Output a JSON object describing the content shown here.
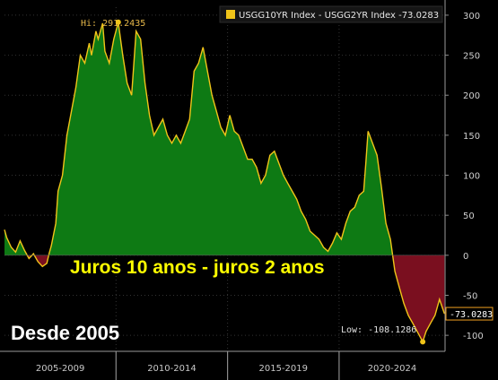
{
  "chart_data": {
    "type": "area",
    "legend": "USGG10YR Index - USGG2YR Index -73.0283",
    "x_period_labels": [
      "2005-2009",
      "2010-2014",
      "2015-2019",
      "2020-2024"
    ],
    "x_range": [
      2005.0,
      2024.75
    ],
    "ylim": [
      -120,
      310
    ],
    "y_ticks": [
      -100,
      -50,
      0,
      50,
      100,
      150,
      200,
      250,
      300
    ],
    "y_tick_labels": [
      "-100",
      "-50",
      "0",
      "50",
      "100",
      "150",
      "200",
      "250",
      "300"
    ],
    "grid": true,
    "legend_position": "top",
    "high_label": "Hi: 291.2435",
    "low_label": "Low: -108.1286",
    "last_value_label": "-73.0283",
    "high": {
      "x": 2010.1,
      "y": 291.2435
    },
    "low": {
      "x": 2023.75,
      "y": -108.1286
    },
    "last": {
      "x": 2024.72,
      "y": -73.0283
    },
    "series": [
      {
        "x": [
          2005.0,
          2005.1,
          2005.3,
          2005.5,
          2005.7,
          2005.9,
          2006.1,
          2006.3,
          2006.5,
          2006.7,
          2006.9,
          2007.0,
          2007.1,
          2007.3,
          2007.4,
          2007.6,
          2007.8,
          2008.0,
          2008.2,
          2008.4,
          2008.6,
          2008.8,
          2008.9,
          2009.1,
          2009.2,
          2009.4,
          2009.5,
          2009.7,
          2009.9,
          2010.1,
          2010.3,
          2010.5,
          2010.7,
          2010.9,
          2011.1,
          2011.3,
          2011.5,
          2011.7,
          2011.9,
          2012.1,
          2012.3,
          2012.5,
          2012.7,
          2012.9,
          2013.1,
          2013.3,
          2013.5,
          2013.7,
          2013.9,
          2014.1,
          2014.3,
          2014.5,
          2014.7,
          2014.9,
          2015.1,
          2015.3,
          2015.5,
          2015.7,
          2015.9,
          2016.1,
          2016.3,
          2016.5,
          2016.7,
          2016.9,
          2017.1,
          2017.3,
          2017.5,
          2017.7,
          2017.9,
          2018.1,
          2018.3,
          2018.5,
          2018.7,
          2018.9,
          2019.1,
          2019.3,
          2019.5,
          2019.7,
          2019.9,
          2020.1,
          2020.3,
          2020.5,
          2020.7,
          2020.9,
          2021.1,
          2021.2,
          2021.3,
          2021.5,
          2021.7,
          2021.9,
          2022.1,
          2022.3,
          2022.5,
          2022.7,
          2022.9,
          2023.1,
          2023.3,
          2023.5,
          2023.75,
          2023.9,
          2024.1,
          2024.3,
          2024.5,
          2024.72
        ],
        "values": [
          32,
          22,
          10,
          4,
          18,
          6,
          -4,
          2,
          -8,
          -14,
          -10,
          2,
          12,
          40,
          80,
          100,
          150,
          180,
          210,
          250,
          240,
          265,
          250,
          280,
          270,
          290,
          255,
          240,
          270,
          291,
          250,
          215,
          200,
          280,
          270,
          215,
          175,
          150,
          160,
          170,
          150,
          140,
          150,
          140,
          155,
          170,
          230,
          240,
          260,
          230,
          200,
          180,
          160,
          150,
          175,
          155,
          150,
          135,
          120,
          120,
          110,
          90,
          100,
          125,
          130,
          115,
          100,
          90,
          80,
          70,
          55,
          45,
          30,
          25,
          20,
          10,
          5,
          15,
          28,
          20,
          40,
          55,
          60,
          75,
          80,
          115,
          155,
          140,
          125,
          85,
          40,
          20,
          -20,
          -40,
          -60,
          -75,
          -85,
          -95,
          -108,
          -95,
          -85,
          -75,
          -55,
          -73
        ]
      }
    ]
  }
}
